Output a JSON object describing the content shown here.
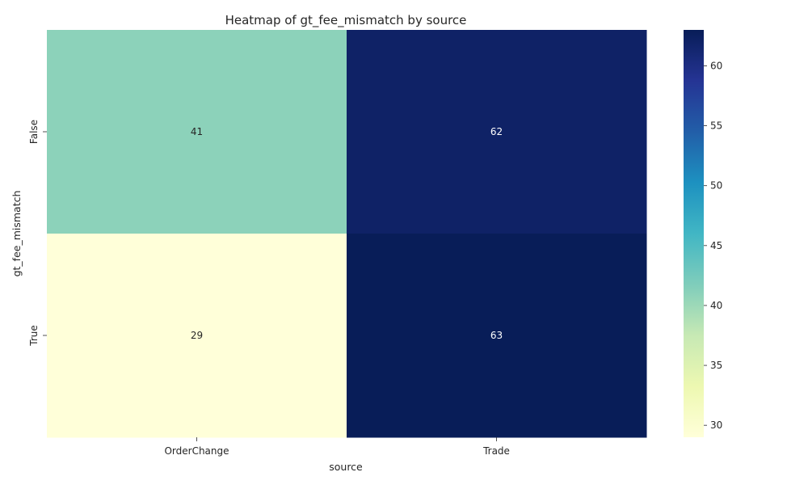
{
  "chart_data": {
    "type": "heatmap",
    "title": "Heatmap of gt_fee_mismatch by source",
    "xlabel": "source",
    "ylabel": "gt_fee_mismatch",
    "x_categories": [
      "OrderChange",
      "Trade"
    ],
    "y_categories": [
      "False",
      "True"
    ],
    "values": [
      [
        41,
        62
      ],
      [
        29,
        63
      ]
    ],
    "colorbar": {
      "range": [
        29,
        63
      ],
      "ticks": [
        30,
        35,
        40,
        45,
        50,
        55,
        60
      ],
      "colormap": "YlGnBu",
      "colors": [
        "#ffffd9",
        "#edf8b1",
        "#c7e9b4",
        "#7fcdbb",
        "#41b6c4",
        "#1d91c0",
        "#225ea8",
        "#253494",
        "#081d58"
      ]
    },
    "grid": false
  }
}
